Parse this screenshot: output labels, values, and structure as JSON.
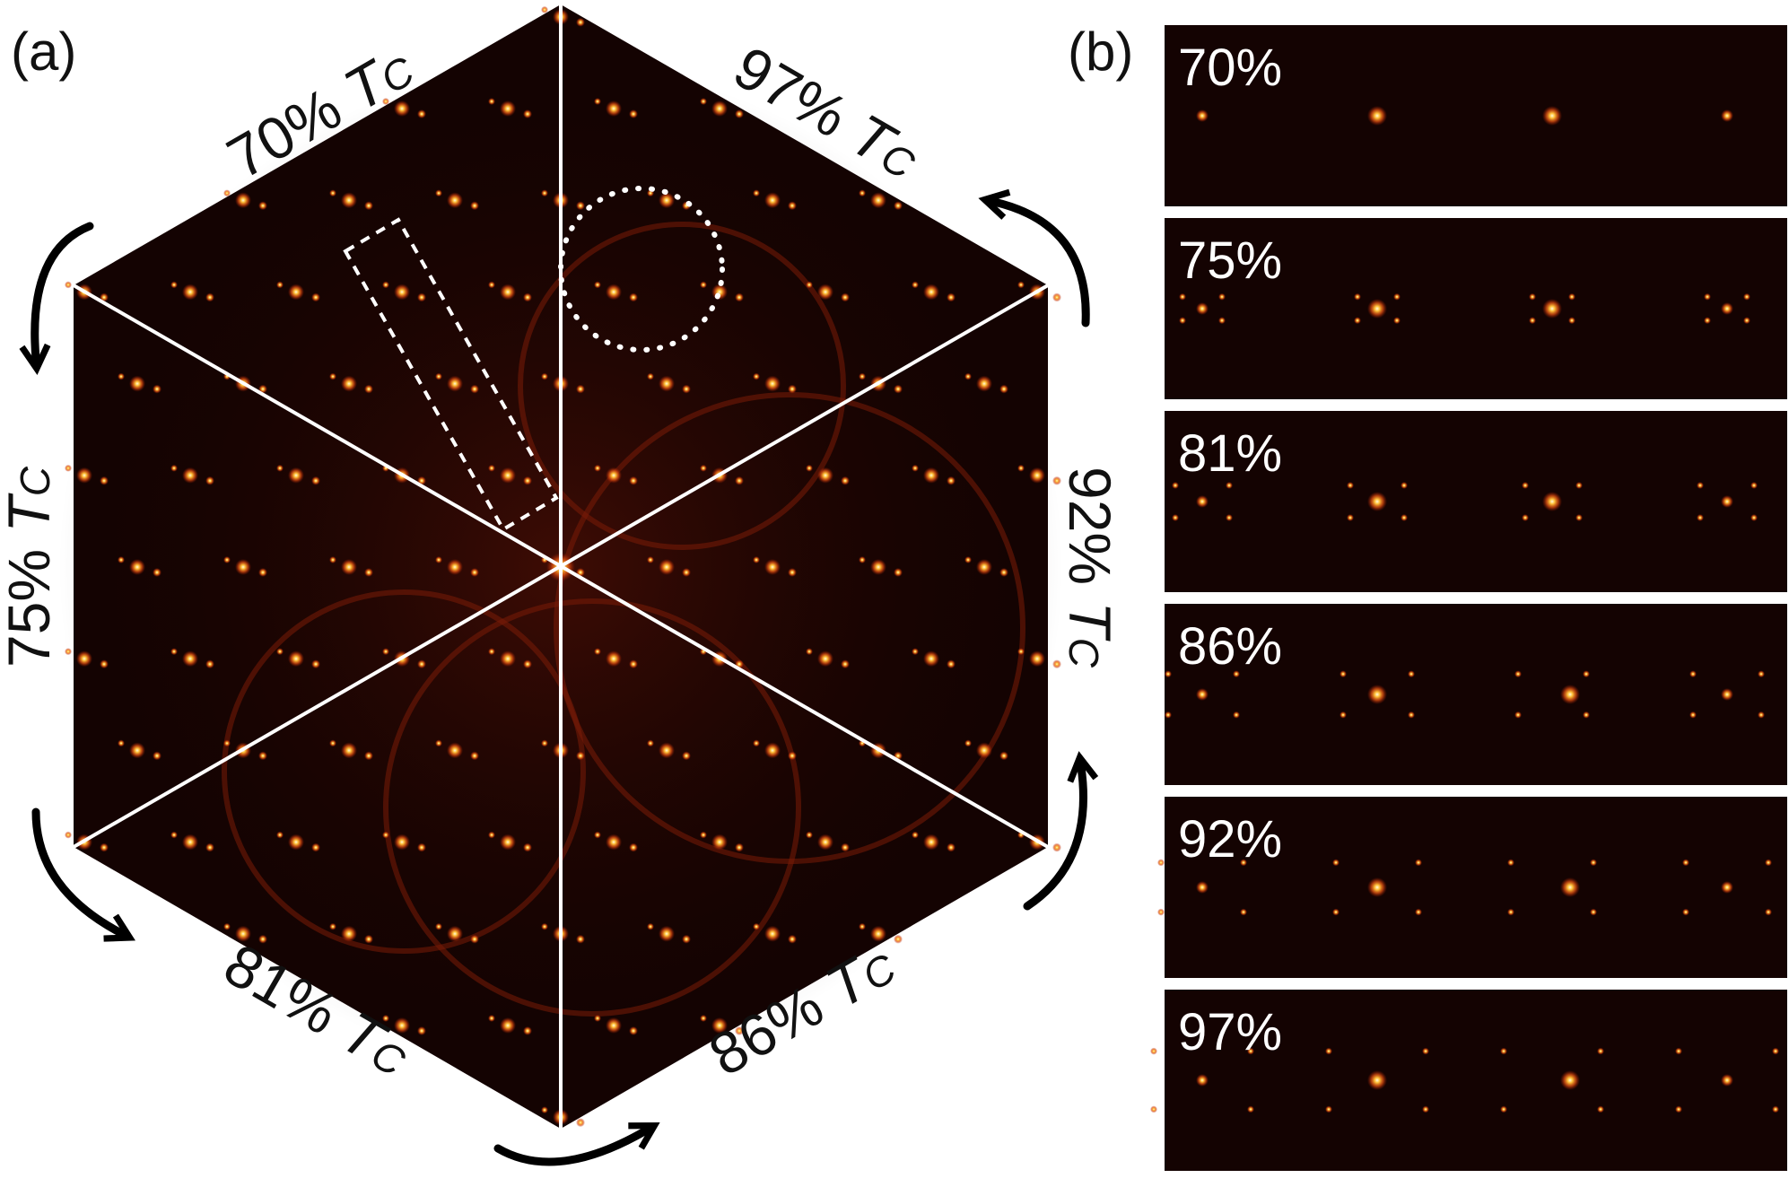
{
  "figure": {
    "panel_a_label": "(a)",
    "panel_b_label": "(b)",
    "temperature_symbol": "T",
    "temperature_subscript": "C",
    "panel_a_sectors": [
      {
        "percent": "70%",
        "name": "sector-70"
      },
      {
        "percent": "97%",
        "name": "sector-97"
      },
      {
        "percent": "92%",
        "name": "sector-92"
      },
      {
        "percent": "86%",
        "name": "sector-86"
      },
      {
        "percent": "81%",
        "name": "sector-81"
      },
      {
        "percent": "75%",
        "name": "sector-75"
      }
    ],
    "panel_b_strips": [
      {
        "percent": "70%"
      },
      {
        "percent": "75%"
      },
      {
        "percent": "81%"
      },
      {
        "percent": "86%"
      },
      {
        "percent": "92%"
      },
      {
        "percent": "97%"
      }
    ],
    "colors": {
      "background": "#140302",
      "spot_core": "#fff6c8",
      "spot_mid": "#ff9a1a",
      "spot_outer": "#c22a08",
      "divider": "#ffffff"
    }
  }
}
